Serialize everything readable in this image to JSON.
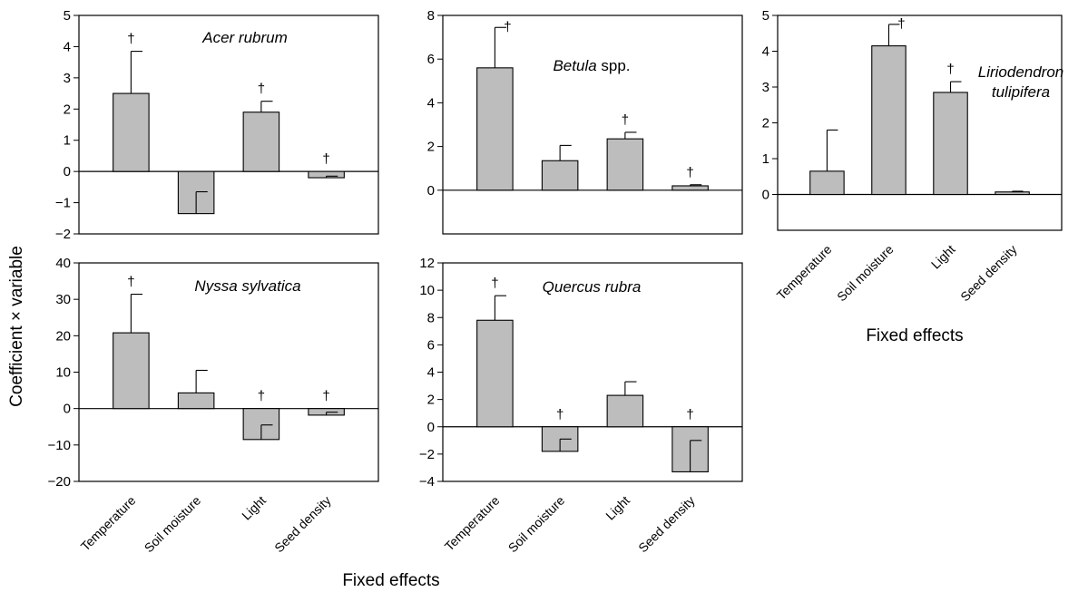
{
  "figure": {
    "ylabel": "Coefficient × variable",
    "xlabel": "Fixed effects",
    "xlabel_right": "Fixed effects"
  },
  "chart_data": [
    {
      "type": "bar",
      "title_italic": "Acer rubrum",
      "title_plain": "",
      "categories": [
        "Temperature",
        "Soil moisture",
        "Light",
        "Seed density"
      ],
      "values": [
        2.5,
        -1.35,
        1.9,
        -0.2
      ],
      "errors": [
        1.35,
        0.7,
        0.35,
        0.05
      ],
      "significance": [
        "†",
        "",
        "†",
        "†"
      ],
      "ylim": [
        -2,
        5
      ],
      "yticks": [
        -2,
        -1,
        0,
        1,
        2,
        3,
        4,
        5
      ],
      "ytick_labels": [
        "−2",
        "−1",
        "0",
        "1",
        "2",
        "3",
        "4",
        "5"
      ],
      "show_category_labels": false
    },
    {
      "type": "bar",
      "title_italic": "Betula",
      "title_plain": " spp.",
      "categories": [
        "Temperature",
        "Soil moisture",
        "Light",
        "Seed density"
      ],
      "values": [
        5.6,
        1.35,
        2.35,
        0.2
      ],
      "errors": [
        1.85,
        0.7,
        0.3,
        0.05
      ],
      "significance": [
        "†",
        "",
        "†",
        "†"
      ],
      "ylim": [
        -2,
        8
      ],
      "yticks": [
        0,
        2,
        4,
        6,
        8
      ],
      "ytick_labels": [
        "0",
        "2",
        "4",
        "6",
        "8"
      ],
      "show_category_labels": false
    },
    {
      "type": "bar",
      "title_italic": "Liriodendron\ntulipifera",
      "title_plain": "",
      "categories": [
        "Temperature",
        "Soil moisture",
        "Light",
        "Seed density"
      ],
      "values": [
        0.65,
        4.15,
        2.85,
        0.07
      ],
      "errors": [
        1.15,
        0.6,
        0.3,
        0.02
      ],
      "significance": [
        "",
        "†",
        "†",
        ""
      ],
      "ylim": [
        -1,
        5
      ],
      "yticks": [
        0,
        1,
        2,
        3,
        4,
        5
      ],
      "ytick_labels": [
        "0",
        "1",
        "2",
        "3",
        "4",
        "5"
      ],
      "show_category_labels": true
    },
    {
      "type": "bar",
      "title_italic": "Nyssa sylvatica",
      "title_plain": "",
      "categories": [
        "Temperature",
        "Soil moisture",
        "Light",
        "Seed density"
      ],
      "values": [
        20.8,
        4.3,
        -8.5,
        -1.8
      ],
      "errors": [
        10.6,
        6.2,
        4.0,
        0.8
      ],
      "significance": [
        "†",
        "",
        "†",
        "†"
      ],
      "ylim": [
        -20,
        40
      ],
      "yticks": [
        -20,
        -10,
        0,
        10,
        20,
        30,
        40
      ],
      "ytick_labels": [
        "−20",
        "−10",
        "0",
        "10",
        "20",
        "30",
        "40"
      ],
      "show_category_labels": true
    },
    {
      "type": "bar",
      "title_italic": "Quercus rubra",
      "title_plain": "",
      "categories": [
        "Temperature",
        "Soil moisture",
        "Light",
        "Seed density"
      ],
      "values": [
        7.8,
        -1.8,
        2.3,
        -3.3
      ],
      "errors": [
        1.8,
        0.9,
        1.0,
        2.3
      ],
      "significance": [
        "†",
        "†",
        "",
        "†"
      ],
      "ylim": [
        -4,
        12
      ],
      "yticks": [
        -4,
        -2,
        0,
        2,
        4,
        6,
        8,
        10,
        12
      ],
      "ytick_labels": [
        "−4",
        "−2",
        "0",
        "2",
        "4",
        "6",
        "8",
        "10",
        "12"
      ],
      "show_category_labels": true
    }
  ],
  "colors": {
    "bar_fill": "#bdbdbd",
    "stroke": "#000000"
  }
}
